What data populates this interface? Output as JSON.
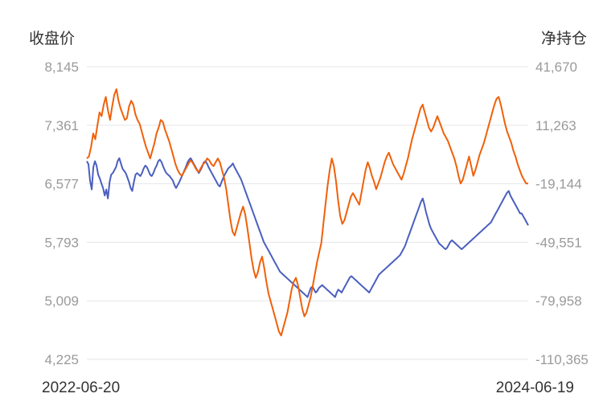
{
  "chart_data": {
    "type": "line",
    "left_axis_title": "收盘价",
    "right_axis_title": "净持仓",
    "left_ticks": [
      "8,145",
      "7,361",
      "6,577",
      "5,793",
      "5,009",
      "4,225"
    ],
    "right_ticks": [
      "41,670",
      "11,263",
      "-19,144",
      "-49,551",
      "-79,958",
      "-110,365"
    ],
    "left_range": [
      4225,
      8145
    ],
    "right_range": [
      -110365,
      41670
    ],
    "x_start_label": "2022-06-20",
    "x_end_label": "2024-06-19",
    "grid": true,
    "series": [
      {
        "axis": "left",
        "color": "#4a5fbf",
        "values": [
          6880,
          6840,
          6620,
          6500,
          6800,
          6880,
          6820,
          6700,
          6650,
          6580,
          6520,
          6420,
          6500,
          6380,
          6600,
          6700,
          6720,
          6760,
          6800,
          6880,
          6920,
          6850,
          6780,
          6750,
          6720,
          6660,
          6600,
          6520,
          6480,
          6600,
          6700,
          6720,
          6700,
          6680,
          6720,
          6780,
          6820,
          6800,
          6750,
          6700,
          6680,
          6720,
          6780,
          6820,
          6880,
          6900,
          6870,
          6810,
          6760,
          6720,
          6700,
          6680,
          6650,
          6620,
          6560,
          6520,
          6560,
          6600,
          6650,
          6700,
          6750,
          6800,
          6860,
          6900,
          6920,
          6880,
          6840,
          6800,
          6760,
          6720,
          6760,
          6800,
          6860,
          6880,
          6850,
          6800,
          6760,
          6720,
          6680,
          6640,
          6600,
          6560,
          6540,
          6600,
          6650,
          6700,
          6740,
          6780,
          6800,
          6820,
          6850,
          6800,
          6760,
          6720,
          6680,
          6640,
          6580,
          6520,
          6460,
          6400,
          6340,
          6280,
          6220,
          6160,
          6100,
          6040,
          5980,
          5920,
          5860,
          5800,
          5760,
          5720,
          5680,
          5640,
          5600,
          5560,
          5520,
          5480,
          5440,
          5400,
          5380,
          5360,
          5340,
          5320,
          5300,
          5280,
          5260,
          5240,
          5220,
          5200,
          5180,
          5160,
          5140,
          5120,
          5100,
          5080,
          5060,
          5120,
          5180,
          5200,
          5160,
          5120,
          5140,
          5180,
          5200,
          5220,
          5200,
          5180,
          5160,
          5140,
          5120,
          5100,
          5080,
          5060,
          5120,
          5160,
          5140,
          5120,
          5160,
          5200,
          5240,
          5280,
          5320,
          5340,
          5320,
          5300,
          5280,
          5260,
          5240,
          5220,
          5200,
          5180,
          5160,
          5140,
          5120,
          5160,
          5200,
          5240,
          5280,
          5320,
          5360,
          5380,
          5400,
          5420,
          5440,
          5460,
          5480,
          5500,
          5520,
          5540,
          5560,
          5580,
          5600,
          5620,
          5660,
          5700,
          5740,
          5800,
          5860,
          5920,
          5980,
          6040,
          6100,
          6160,
          6220,
          6280,
          6340,
          6380,
          6300,
          6200,
          6120,
          6040,
          5980,
          5940,
          5900,
          5860,
          5820,
          5780,
          5760,
          5740,
          5720,
          5700,
          5720,
          5760,
          5800,
          5820,
          5800,
          5780,
          5760,
          5740,
          5720,
          5700,
          5720,
          5740,
          5760,
          5780,
          5800,
          5820,
          5840,
          5860,
          5880,
          5900,
          5920,
          5940,
          5960,
          5980,
          6000,
          6020,
          6040,
          6060,
          6100,
          6140,
          6180,
          6220,
          6260,
          6300,
          6340,
          6380,
          6420,
          6460,
          6480,
          6420,
          6380,
          6340,
          6300,
          6260,
          6220,
          6180,
          6180,
          6140,
          6100,
          6060,
          6020
        ]
      },
      {
        "axis": "right",
        "color": "#f0600a",
        "values": [
          -6000,
          -5000,
          0,
          7000,
          4000,
          11000,
          18000,
          16000,
          22000,
          26000,
          19000,
          14000,
          21000,
          27000,
          30000,
          24000,
          20000,
          17000,
          14000,
          15000,
          21000,
          24000,
          22000,
          17000,
          14000,
          12000,
          8000,
          4000,
          0,
          -3000,
          -6000,
          -2000,
          2000,
          7000,
          10000,
          14000,
          13000,
          9000,
          6000,
          3000,
          -1000,
          -5000,
          -9000,
          -12000,
          -14000,
          -15000,
          -13000,
          -11000,
          -9000,
          -7000,
          -8000,
          -10000,
          -12000,
          -13000,
          -11000,
          -9000,
          -8000,
          -6000,
          -7000,
          -9000,
          -10000,
          -8000,
          -6000,
          -8000,
          -12000,
          -16000,
          -22000,
          -30000,
          -38000,
          -44000,
          -46000,
          -42000,
          -38000,
          -34000,
          -31000,
          -35000,
          -42000,
          -50000,
          -58000,
          -64000,
          -68000,
          -65000,
          -60000,
          -57000,
          -63000,
          -70000,
          -76000,
          -80000,
          -84000,
          -88000,
          -92000,
          -96000,
          -98000,
          -94000,
          -90000,
          -86000,
          -80000,
          -74000,
          -70000,
          -68000,
          -72000,
          -78000,
          -84000,
          -88000,
          -86000,
          -82000,
          -78000,
          -72000,
          -66000,
          -60000,
          -55000,
          -50000,
          -40000,
          -30000,
          -20000,
          -12000,
          -6000,
          -10000,
          -18000,
          -28000,
          -36000,
          -40000,
          -38000,
          -34000,
          -30000,
          -26000,
          -24000,
          -26000,
          -28000,
          -30000,
          -24000,
          -18000,
          -12000,
          -8000,
          -11000,
          -15000,
          -18000,
          -22000,
          -19000,
          -16000,
          -12000,
          -8000,
          -5000,
          -3000,
          -6000,
          -9000,
          -11000,
          -13000,
          -15000,
          -17000,
          -14000,
          -10000,
          -6000,
          -1000,
          4000,
          8000,
          12000,
          16000,
          20000,
          22000,
          18000,
          14000,
          10000,
          8000,
          10000,
          13000,
          16000,
          13000,
          10000,
          7000,
          5000,
          3000,
          0,
          -3000,
          -6000,
          -10000,
          -15000,
          -19000,
          -17000,
          -13000,
          -9000,
          -5000,
          -10000,
          -15000,
          -12000,
          -8000,
          -4000,
          -1000,
          2000,
          6000,
          10000,
          14000,
          18000,
          22000,
          25000,
          26000,
          22000,
          17000,
          12000,
          8000,
          5000,
          2000,
          -2000,
          -5000,
          -9000,
          -12000,
          -15000,
          -17000,
          -19000,
          -19000
        ]
      }
    ]
  }
}
